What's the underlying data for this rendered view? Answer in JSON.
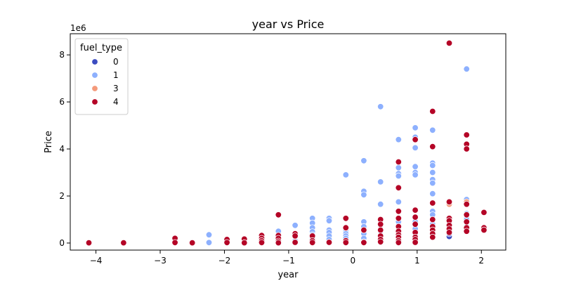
{
  "chart_data": {
    "type": "scatter",
    "title": "year vs Price",
    "xlabel": "year",
    "ylabel": "Price",
    "y_offset_label": "1e6",
    "xlim": [
      -4.4,
      2.38
    ],
    "ylim": [
      -300000,
      8900000
    ],
    "xticks": [
      -4,
      -3,
      -2,
      -1,
      0,
      1,
      2
    ],
    "yticks": [
      0,
      2000000,
      4000000,
      6000000,
      8000000
    ],
    "ytick_labels": [
      "0",
      "2",
      "4",
      "6",
      "8"
    ],
    "grid": false,
    "legend": {
      "title": "fuel_type",
      "placement": "upper-left"
    },
    "series": [
      {
        "name": "0",
        "color": "#3b4cc0",
        "points": [
          [
            1.5,
            280000
          ],
          [
            1.5,
            400000
          ],
          [
            1.5,
            520000
          ],
          [
            1.5,
            650000
          ]
        ]
      },
      {
        "name": "1",
        "color": "#8db0fe",
        "points": [
          [
            -2.24,
            350000
          ],
          [
            -2.24,
            20000
          ],
          [
            -1.96,
            50000
          ],
          [
            -1.69,
            100000
          ],
          [
            -1.69,
            30000
          ],
          [
            -1.42,
            150000
          ],
          [
            -1.42,
            60000
          ],
          [
            -1.16,
            500000
          ],
          [
            -1.16,
            150000
          ],
          [
            -1.16,
            50000
          ],
          [
            -0.9,
            750000
          ],
          [
            -0.9,
            350000
          ],
          [
            -0.9,
            100000
          ],
          [
            -0.63,
            1050000
          ],
          [
            -0.63,
            850000
          ],
          [
            -0.63,
            650000
          ],
          [
            -0.63,
            480000
          ],
          [
            -0.63,
            350000
          ],
          [
            -0.63,
            200000
          ],
          [
            -0.63,
            50000
          ],
          [
            -0.37,
            1050000
          ],
          [
            -0.37,
            950000
          ],
          [
            -0.37,
            550000
          ],
          [
            -0.37,
            450000
          ],
          [
            -0.37,
            300000
          ],
          [
            -0.37,
            150000
          ],
          [
            -0.37,
            30000
          ],
          [
            -0.11,
            2900000
          ],
          [
            -0.11,
            650000
          ],
          [
            -0.11,
            550000
          ],
          [
            -0.11,
            480000
          ],
          [
            -0.11,
            400000
          ],
          [
            -0.11,
            300000
          ],
          [
            -0.11,
            200000
          ],
          [
            -0.11,
            30000
          ],
          [
            0.17,
            3500000
          ],
          [
            0.17,
            2200000
          ],
          [
            0.17,
            2050000
          ],
          [
            0.17,
            900000
          ],
          [
            0.17,
            700000
          ],
          [
            0.17,
            400000
          ],
          [
            0.17,
            200000
          ],
          [
            0.17,
            50000
          ],
          [
            0.43,
            5800000
          ],
          [
            0.43,
            2600000
          ],
          [
            0.43,
            1650000
          ],
          [
            0.43,
            950000
          ],
          [
            0.43,
            750000
          ],
          [
            0.43,
            500000
          ],
          [
            0.43,
            300000
          ],
          [
            0.43,
            30000
          ],
          [
            0.71,
            4400000
          ],
          [
            0.71,
            3200000
          ],
          [
            0.71,
            2950000
          ],
          [
            0.71,
            2850000
          ],
          [
            0.71,
            1750000
          ],
          [
            0.71,
            900000
          ],
          [
            0.71,
            700000
          ],
          [
            0.71,
            500000
          ],
          [
            0.71,
            300000
          ],
          [
            0.71,
            100000
          ],
          [
            0.71,
            20000
          ],
          [
            0.97,
            4900000
          ],
          [
            0.97,
            4500000
          ],
          [
            0.97,
            4050000
          ],
          [
            0.97,
            3250000
          ],
          [
            0.97,
            3000000
          ],
          [
            0.97,
            2900000
          ],
          [
            0.97,
            900000
          ],
          [
            0.97,
            600000
          ],
          [
            0.97,
            300000
          ],
          [
            0.97,
            50000
          ],
          [
            1.24,
            4800000
          ],
          [
            1.24,
            3400000
          ],
          [
            1.24,
            3300000
          ],
          [
            1.24,
            3000000
          ],
          [
            1.24,
            2700000
          ],
          [
            1.24,
            2550000
          ],
          [
            1.24,
            2100000
          ],
          [
            1.24,
            1350000
          ],
          [
            1.24,
            1200000
          ],
          [
            1.24,
            800000
          ],
          [
            1.24,
            300000
          ],
          [
            1.5,
            800000
          ],
          [
            1.5,
            700000
          ],
          [
            1.77,
            7400000
          ],
          [
            1.77,
            1850000
          ],
          [
            1.77,
            1250000
          ],
          [
            1.77,
            1100000
          ],
          [
            1.77,
            1000000
          ],
          [
            1.77,
            700000
          ]
        ]
      },
      {
        "name": "3",
        "color": "#f49a7b",
        "points": [
          [
            1.5,
            1650000
          ],
          [
            1.77,
            1750000
          ]
        ]
      },
      {
        "name": "4",
        "color": "#b40426",
        "points": [
          [
            -4.11,
            10000
          ],
          [
            -3.57,
            10000
          ],
          [
            -2.77,
            200000
          ],
          [
            -2.77,
            20000
          ],
          [
            -2.5,
            10000
          ],
          [
            -1.96,
            150000
          ],
          [
            -1.96,
            20000
          ],
          [
            -1.69,
            170000
          ],
          [
            -1.69,
            10000
          ],
          [
            -1.42,
            320000
          ],
          [
            -1.42,
            200000
          ],
          [
            -1.42,
            100000
          ],
          [
            -1.42,
            20000
          ],
          [
            -1.16,
            1200000
          ],
          [
            -1.16,
            320000
          ],
          [
            -1.16,
            200000
          ],
          [
            -1.16,
            80000
          ],
          [
            -1.16,
            10000
          ],
          [
            -0.9,
            400000
          ],
          [
            -0.9,
            300000
          ],
          [
            -0.9,
            30000
          ],
          [
            -0.63,
            300000
          ],
          [
            -0.63,
            100000
          ],
          [
            -0.63,
            20000
          ],
          [
            -0.37,
            30000
          ],
          [
            -0.11,
            1050000
          ],
          [
            -0.11,
            650000
          ],
          [
            -0.11,
            100000
          ],
          [
            -0.11,
            20000
          ],
          [
            0.17,
            550000
          ],
          [
            0.17,
            20000
          ],
          [
            0.43,
            1000000
          ],
          [
            0.43,
            800000
          ],
          [
            0.43,
            550000
          ],
          [
            0.43,
            300000
          ],
          [
            0.43,
            150000
          ],
          [
            0.43,
            50000
          ],
          [
            0.71,
            3450000
          ],
          [
            0.71,
            2350000
          ],
          [
            0.71,
            1350000
          ],
          [
            0.71,
            1050000
          ],
          [
            0.71,
            700000
          ],
          [
            0.71,
            500000
          ],
          [
            0.71,
            350000
          ],
          [
            0.71,
            250000
          ],
          [
            0.71,
            100000
          ],
          [
            0.71,
            20000
          ],
          [
            0.97,
            4400000
          ],
          [
            0.97,
            1400000
          ],
          [
            0.97,
            1100000
          ],
          [
            0.97,
            800000
          ],
          [
            0.97,
            450000
          ],
          [
            0.97,
            250000
          ],
          [
            0.97,
            150000
          ],
          [
            0.97,
            30000
          ],
          [
            1.24,
            5600000
          ],
          [
            1.24,
            4100000
          ],
          [
            1.24,
            1700000
          ],
          [
            1.24,
            1000000
          ],
          [
            1.24,
            700000
          ],
          [
            1.24,
            550000
          ],
          [
            1.24,
            400000
          ],
          [
            1.24,
            250000
          ],
          [
            1.5,
            8500000
          ],
          [
            1.5,
            1750000
          ],
          [
            1.5,
            1050000
          ],
          [
            1.5,
            950000
          ],
          [
            1.5,
            750000
          ],
          [
            1.5,
            600000
          ],
          [
            1.5,
            450000
          ],
          [
            1.77,
            4600000
          ],
          [
            1.77,
            4200000
          ],
          [
            1.77,
            4000000
          ],
          [
            1.77,
            1650000
          ],
          [
            1.77,
            1200000
          ],
          [
            1.77,
            900000
          ],
          [
            1.77,
            650000
          ],
          [
            1.77,
            500000
          ],
          [
            2.04,
            1300000
          ],
          [
            2.04,
            650000
          ],
          [
            2.04,
            550000
          ]
        ]
      }
    ]
  }
}
